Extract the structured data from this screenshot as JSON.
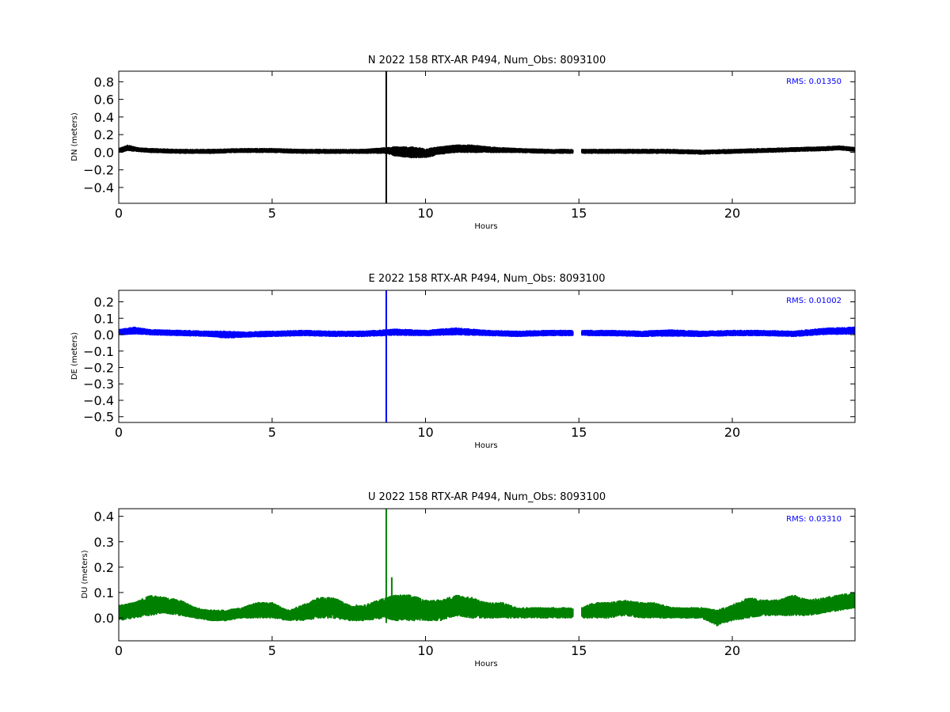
{
  "chart_data": [
    {
      "type": "line",
      "title": "N 2022 158 RTX-AR  P494, Num_Obs: 8093100",
      "xlabel": "Hours",
      "ylabel": "DN (meters)",
      "xlim": [
        0,
        24
      ],
      "ylim": [
        -0.58,
        0.92
      ],
      "xticks": [
        0,
        5,
        10,
        15,
        20
      ],
      "yticks": [
        -0.4,
        -0.2,
        0.0,
        0.2,
        0.4,
        0.6,
        0.8
      ],
      "rms_label": "RMS:  0.01350",
      "color": "#000000",
      "grid": false,
      "data_gap_hours": [
        14.8,
        15.1
      ],
      "spike": {
        "hour": 8.72,
        "min": -0.58,
        "max": 0.92
      },
      "series": [
        {
          "x": [
            0.0,
            0.3,
            0.6,
            1.0,
            2.0,
            3.0,
            4.0,
            5.0,
            6.0,
            7.0,
            8.0,
            8.7,
            9.0,
            9.5,
            10.0,
            10.5,
            11.0,
            11.5,
            12.0,
            13.0,
            14.0,
            14.8,
            15.1,
            16.0,
            17.0,
            18.0,
            19.0,
            20.0,
            21.0,
            22.0,
            23.0,
            23.5,
            24.0
          ],
          "center": [
            0.02,
            0.05,
            0.03,
            0.02,
            0.01,
            0.01,
            0.02,
            0.02,
            0.01,
            0.01,
            0.01,
            0.02,
            0.01,
            0.0,
            -0.01,
            0.02,
            0.04,
            0.04,
            0.03,
            0.02,
            0.01,
            0.01,
            0.01,
            0.01,
            0.01,
            0.01,
            0.0,
            0.01,
            0.02,
            0.03,
            0.04,
            0.05,
            0.03
          ],
          "halfwidth": [
            0.02,
            0.03,
            0.02,
            0.02,
            0.02,
            0.02,
            0.02,
            0.02,
            0.02,
            0.02,
            0.02,
            0.03,
            0.05,
            0.06,
            0.05,
            0.04,
            0.04,
            0.04,
            0.03,
            0.02,
            0.02,
            0.02,
            0.02,
            0.02,
            0.02,
            0.02,
            0.02,
            0.02,
            0.02,
            0.02,
            0.02,
            0.02,
            0.02
          ]
        }
      ]
    },
    {
      "type": "line",
      "title": "E 2022 158 RTX-AR  P494, Num_Obs: 8093100",
      "xlabel": "Hours",
      "ylabel": "DE (meters)",
      "xlim": [
        0,
        24
      ],
      "ylim": [
        -0.535,
        0.27
      ],
      "xticks": [
        0,
        5,
        10,
        15,
        20
      ],
      "yticks": [
        -0.5,
        -0.4,
        -0.3,
        -0.2,
        -0.1,
        0.0,
        0.1,
        0.2
      ],
      "rms_label": "RMS:  0.01002",
      "color": "#0000ff",
      "grid": false,
      "data_gap_hours": [
        14.8,
        15.1
      ],
      "spike": {
        "hour": 8.72,
        "min": -0.535,
        "max": 0.27
      },
      "series": [
        {
          "x": [
            0.0,
            0.5,
            1.0,
            2.0,
            3.0,
            3.5,
            4.0,
            5.0,
            6.0,
            7.0,
            8.0,
            9.0,
            10.0,
            11.0,
            12.0,
            13.0,
            14.0,
            14.8,
            15.1,
            16.0,
            17.0,
            18.0,
            19.0,
            20.0,
            21.0,
            22.0,
            23.0,
            24.0
          ],
          "center": [
            0.015,
            0.025,
            0.015,
            0.01,
            0.005,
            0.0,
            0.0,
            0.005,
            0.01,
            0.005,
            0.005,
            0.015,
            0.01,
            0.02,
            0.01,
            0.005,
            0.01,
            0.01,
            0.01,
            0.01,
            0.005,
            0.01,
            0.005,
            0.01,
            0.01,
            0.005,
            0.02,
            0.025
          ],
          "halfwidth": [
            0.015,
            0.02,
            0.015,
            0.015,
            0.015,
            0.02,
            0.015,
            0.015,
            0.015,
            0.015,
            0.015,
            0.018,
            0.015,
            0.02,
            0.015,
            0.015,
            0.015,
            0.015,
            0.015,
            0.015,
            0.015,
            0.018,
            0.015,
            0.015,
            0.015,
            0.015,
            0.018,
            0.02
          ]
        }
      ]
    },
    {
      "type": "line",
      "title": "U 2022 158 RTX-AR  P494, Num_Obs: 8093100",
      "xlabel": "Hours",
      "ylabel": "DU (meters)",
      "xlim": [
        0,
        24
      ],
      "ylim": [
        -0.09,
        0.43
      ],
      "xticks": [
        0,
        5,
        10,
        15,
        20
      ],
      "yticks": [
        0.0,
        0.1,
        0.2,
        0.3,
        0.4
      ],
      "rms_label": "RMS:  0.03310",
      "color": "#008000",
      "grid": false,
      "data_gap_hours": [
        14.8,
        15.1
      ],
      "spike": {
        "hour": 8.72,
        "min": -0.02,
        "max": 0.43
      },
      "spike2": {
        "hour": 8.9,
        "min": 0.0,
        "max": 0.16
      },
      "series": [
        {
          "x": [
            0.0,
            0.5,
            1.0,
            1.5,
            2.0,
            2.5,
            3.0,
            3.5,
            4.0,
            4.5,
            5.0,
            5.5,
            6.0,
            6.5,
            7.0,
            7.5,
            8.0,
            8.7,
            9.0,
            9.5,
            10.0,
            10.5,
            11.0,
            11.5,
            12.0,
            12.5,
            13.0,
            13.5,
            14.0,
            14.8,
            15.1,
            15.5,
            16.0,
            16.5,
            17.0,
            17.5,
            18.0,
            18.5,
            19.0,
            19.5,
            20.0,
            20.5,
            21.0,
            21.5,
            22.0,
            22.5,
            23.0,
            23.5,
            24.0
          ],
          "center": [
            0.02,
            0.03,
            0.05,
            0.05,
            0.04,
            0.02,
            0.01,
            0.01,
            0.02,
            0.03,
            0.03,
            0.01,
            0.02,
            0.04,
            0.04,
            0.02,
            0.02,
            0.04,
            0.04,
            0.04,
            0.03,
            0.03,
            0.05,
            0.04,
            0.03,
            0.03,
            0.02,
            0.02,
            0.02,
            0.02,
            0.02,
            0.03,
            0.03,
            0.04,
            0.03,
            0.03,
            0.02,
            0.02,
            0.02,
            0.0,
            0.02,
            0.04,
            0.04,
            0.04,
            0.05,
            0.04,
            0.05,
            0.06,
            0.07
          ],
          "halfwidth": [
            0.03,
            0.03,
            0.04,
            0.03,
            0.03,
            0.02,
            0.02,
            0.02,
            0.02,
            0.03,
            0.03,
            0.02,
            0.03,
            0.04,
            0.04,
            0.03,
            0.03,
            0.04,
            0.05,
            0.05,
            0.04,
            0.04,
            0.04,
            0.04,
            0.03,
            0.03,
            0.02,
            0.02,
            0.02,
            0.02,
            0.02,
            0.03,
            0.03,
            0.03,
            0.03,
            0.03,
            0.02,
            0.02,
            0.02,
            0.03,
            0.03,
            0.04,
            0.03,
            0.03,
            0.04,
            0.03,
            0.03,
            0.03,
            0.03
          ]
        }
      ]
    }
  ]
}
